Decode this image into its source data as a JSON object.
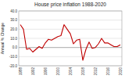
{
  "chart_data": {
    "type": "line",
    "title": "House price inflation 1988-2020",
    "y_label": "Annual % Change",
    "categories": [
      "1988",
      null,
      null,
      null,
      "1992",
      null,
      null,
      null,
      "1996",
      null,
      null,
      null,
      "2000",
      null,
      null,
      null,
      "2004",
      null,
      null,
      null,
      "2008",
      null,
      null,
      null,
      "2012",
      null,
      null,
      null,
      "2016",
      null,
      null,
      null,
      "2020"
    ],
    "series": [
      {
        "name": "House price inflation",
        "color": "#c00000",
        "values": [
          25,
          20,
          -2,
          -1,
          -5,
          -2,
          1,
          -1,
          5,
          9,
          8,
          10,
          12,
          13,
          25,
          20,
          15,
          4,
          8,
          9,
          -14,
          -2,
          6,
          -1,
          0,
          4,
          10,
          5,
          5,
          3,
          1,
          1,
          3
        ]
      }
    ],
    "ylim": [
      -20,
      40
    ],
    "yticks": [
      {
        "value": -20,
        "label": "-20.0"
      },
      {
        "value": -10,
        "label": "-10.0"
      },
      {
        "value": 0,
        "label": "0.0"
      },
      {
        "value": 10,
        "label": "10.0"
      },
      {
        "value": 20,
        "label": "20.0"
      },
      {
        "value": 30,
        "label": "30.0"
      },
      {
        "value": 40,
        "label": "40.0"
      }
    ],
    "grid": true
  }
}
